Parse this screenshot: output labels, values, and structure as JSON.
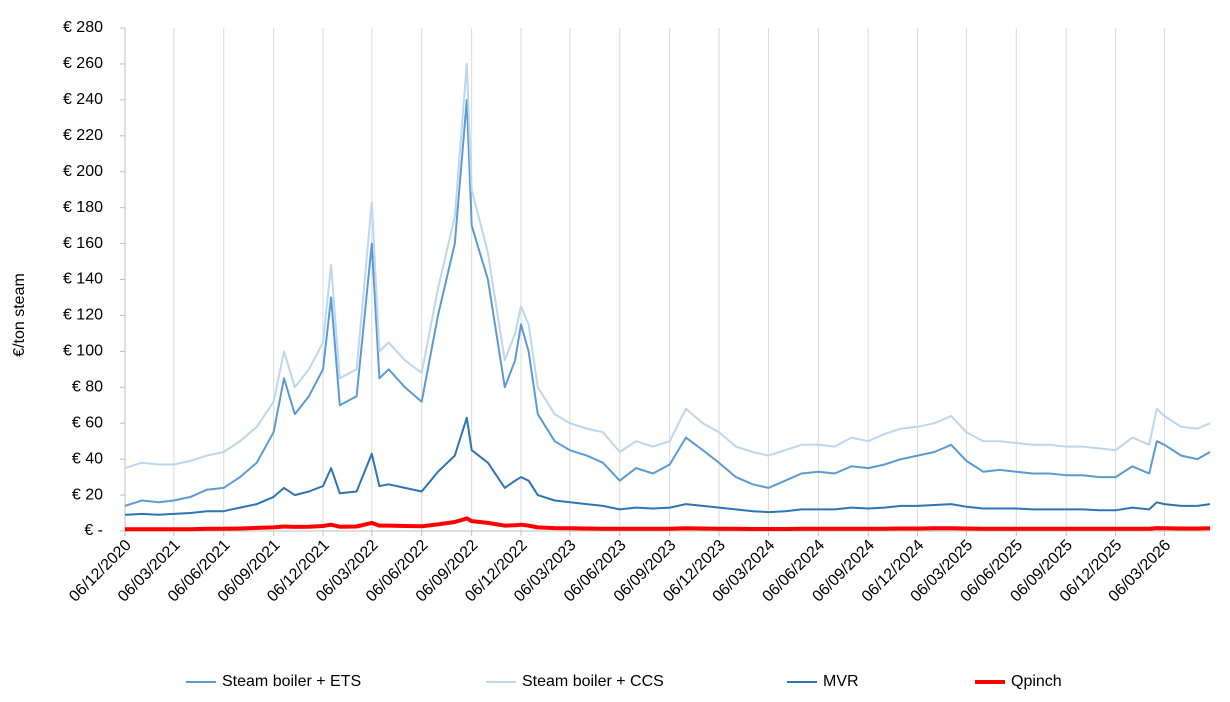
{
  "chart_data": {
    "type": "line",
    "y_label": "€/ton steam",
    "x": [
      "2020-12-06",
      "2021-01-06",
      "2021-02-06",
      "2021-03-06",
      "2021-04-06",
      "2021-05-06",
      "2021-06-06",
      "2021-07-06",
      "2021-08-06",
      "2021-09-06",
      "2021-09-25",
      "2021-10-15",
      "2021-11-10",
      "2021-12-06",
      "2021-12-21",
      "2022-01-06",
      "2022-02-06",
      "2022-03-06",
      "2022-03-20",
      "2022-04-06",
      "2022-05-06",
      "2022-06-06",
      "2022-07-06",
      "2022-08-06",
      "2022-08-28",
      "2022-09-06",
      "2022-10-06",
      "2022-11-06",
      "2022-11-25",
      "2022-12-06",
      "2022-12-20",
      "2023-01-06",
      "2023-02-06",
      "2023-03-06",
      "2023-04-06",
      "2023-05-06",
      "2023-06-06",
      "2023-07-06",
      "2023-08-06",
      "2023-09-06",
      "2023-10-06",
      "2023-11-06",
      "2023-12-06",
      "2024-01-06",
      "2024-02-06",
      "2024-03-06",
      "2024-04-06",
      "2024-05-06",
      "2024-06-06",
      "2024-07-06",
      "2024-08-06",
      "2024-09-06",
      "2024-10-06",
      "2024-11-06",
      "2024-12-06",
      "2025-01-06",
      "2025-02-06",
      "2025-03-06",
      "2025-04-06",
      "2025-05-06",
      "2025-06-06",
      "2025-07-06",
      "2025-08-06",
      "2025-09-06",
      "2025-10-06",
      "2025-11-06",
      "2025-12-06",
      "2026-01-06",
      "2026-02-06",
      "2026-02-20",
      "2026-03-06",
      "2026-04-06",
      "2026-05-06",
      "2026-05-29"
    ],
    "series": [
      {
        "name": "Steam boiler + ETS",
        "color": "#5b9bd5",
        "width": 2,
        "values": [
          14,
          17,
          16,
          17,
          19,
          23,
          24,
          30,
          38,
          55,
          85,
          65,
          75,
          90,
          130,
          70,
          75,
          160,
          85,
          90,
          80,
          72,
          120,
          160,
          240,
          170,
          140,
          80,
          95,
          115,
          100,
          65,
          50,
          45,
          42,
          38,
          28,
          35,
          32,
          37,
          52,
          45,
          38,
          30,
          26,
          24,
          28,
          32,
          33,
          32,
          36,
          35,
          37,
          40,
          42,
          44,
          48,
          39,
          33,
          34,
          33,
          32,
          32,
          31,
          31,
          30,
          30,
          36,
          32,
          50,
          48,
          42,
          40,
          44
        ]
      },
      {
        "name": "Steam boiler + CCS",
        "color": "#bdd7ee",
        "width": 2,
        "values": [
          35,
          38,
          37,
          37,
          39,
          42,
          44,
          50,
          58,
          72,
          100,
          80,
          90,
          105,
          148,
          85,
          90,
          183,
          100,
          105,
          95,
          88,
          135,
          175,
          260,
          190,
          155,
          95,
          110,
          125,
          115,
          80,
          65,
          60,
          57,
          55,
          44,
          50,
          47,
          50,
          68,
          60,
          55,
          47,
          44,
          42,
          45,
          48,
          48,
          47,
          52,
          50,
          54,
          57,
          58,
          60,
          64,
          55,
          50,
          50,
          49,
          48,
          48,
          47,
          47,
          46,
          45,
          52,
          48,
          68,
          64,
          58,
          57,
          60
        ]
      },
      {
        "name": "MVR",
        "color": "#2e75b6",
        "width": 2,
        "values": [
          9,
          9.5,
          9,
          9.5,
          10,
          11,
          11,
          13,
          15,
          19,
          24,
          20,
          22,
          25,
          35,
          21,
          22,
          43,
          25,
          26,
          24,
          22,
          33,
          42,
          63,
          45,
          38,
          24,
          28,
          30,
          28,
          20,
          17,
          16,
          15,
          14,
          12,
          13,
          12.5,
          13,
          15,
          14,
          13,
          12,
          11,
          10.5,
          11,
          12,
          12,
          12,
          13,
          12.5,
          13,
          14,
          14,
          14.5,
          15,
          13.5,
          12.5,
          12.5,
          12.5,
          12,
          12,
          12,
          12,
          11.5,
          11.5,
          13,
          12,
          16,
          15,
          14,
          14,
          15
        ]
      },
      {
        "name": "Qpinch",
        "color": "#ff0000",
        "width": 4,
        "values": [
          1,
          1,
          1,
          1,
          1,
          1.2,
          1.2,
          1.4,
          1.7,
          2,
          2.5,
          2.3,
          2.4,
          2.8,
          3.5,
          2.4,
          2.5,
          4.5,
          3,
          3,
          2.8,
          2.6,
          3.7,
          5,
          7,
          5.5,
          4.5,
          3,
          3.2,
          3.5,
          3,
          2,
          1.6,
          1.5,
          1.4,
          1.3,
          1.2,
          1.3,
          1.2,
          1.3,
          1.5,
          1.4,
          1.3,
          1.2,
          1.1,
          1.1,
          1.1,
          1.2,
          1.2,
          1.2,
          1.3,
          1.2,
          1.3,
          1.4,
          1.4,
          1.5,
          1.5,
          1.4,
          1.3,
          1.3,
          1.3,
          1.2,
          1.2,
          1.2,
          1.2,
          1.2,
          1.2,
          1.3,
          1.2,
          1.6,
          1.5,
          1.4,
          1.4,
          1.5
        ]
      }
    ],
    "xlim": [
      "2020-12-06",
      "2026-05-29"
    ],
    "xticks": [
      {
        "value": "2020-12-06",
        "label": "06/12/2020"
      },
      {
        "value": "2021-03-06",
        "label": "06/03/2021"
      },
      {
        "value": "2021-06-06",
        "label": "06/06/2021"
      },
      {
        "value": "2021-09-06",
        "label": "06/09/2021"
      },
      {
        "value": "2021-12-06",
        "label": "06/12/2021"
      },
      {
        "value": "2022-03-06",
        "label": "06/03/2022"
      },
      {
        "value": "2022-06-06",
        "label": "06/06/2022"
      },
      {
        "value": "2022-09-06",
        "label": "06/09/2022"
      },
      {
        "value": "2022-12-06",
        "label": "06/12/2022"
      },
      {
        "value": "2023-03-06",
        "label": "06/03/2023"
      },
      {
        "value": "2023-06-06",
        "label": "06/06/2023"
      },
      {
        "value": "2023-09-06",
        "label": "06/09/2023"
      },
      {
        "value": "2023-12-06",
        "label": "06/12/2023"
      },
      {
        "value": "2024-03-06",
        "label": "06/03/2024"
      },
      {
        "value": "2024-06-06",
        "label": "06/06/2024"
      },
      {
        "value": "2024-09-06",
        "label": "06/09/2024"
      },
      {
        "value": "2024-12-06",
        "label": "06/12/2024"
      },
      {
        "value": "2025-03-06",
        "label": "06/03/2025"
      },
      {
        "value": "2025-06-06",
        "label": "06/06/2025"
      },
      {
        "value": "2025-09-06",
        "label": "06/09/2025"
      },
      {
        "value": "2025-12-06",
        "label": "06/12/2025"
      },
      {
        "value": "2026-03-06",
        "label": "06/03/2026"
      }
    ],
    "ylim": [
      0,
      280
    ],
    "yticks": [
      {
        "value": 0,
        "label": "€ -"
      },
      {
        "value": 20,
        "label": "€ 20"
      },
      {
        "value": 40,
        "label": "€ 40"
      },
      {
        "value": 60,
        "label": "€ 60"
      },
      {
        "value": 80,
        "label": "€ 80"
      },
      {
        "value": 100,
        "label": "€ 100"
      },
      {
        "value": 120,
        "label": "€ 120"
      },
      {
        "value": 140,
        "label": "€ 140"
      },
      {
        "value": 160,
        "label": "€ 160"
      },
      {
        "value": 180,
        "label": "€ 180"
      },
      {
        "value": 200,
        "label": "€ 200"
      },
      {
        "value": 220,
        "label": "€ 220"
      },
      {
        "value": 240,
        "label": "€ 240"
      },
      {
        "value": 260,
        "label": "€ 260"
      },
      {
        "value": 280,
        "label": "€ 280"
      }
    ],
    "grid": "x",
    "legend": "bottom"
  }
}
